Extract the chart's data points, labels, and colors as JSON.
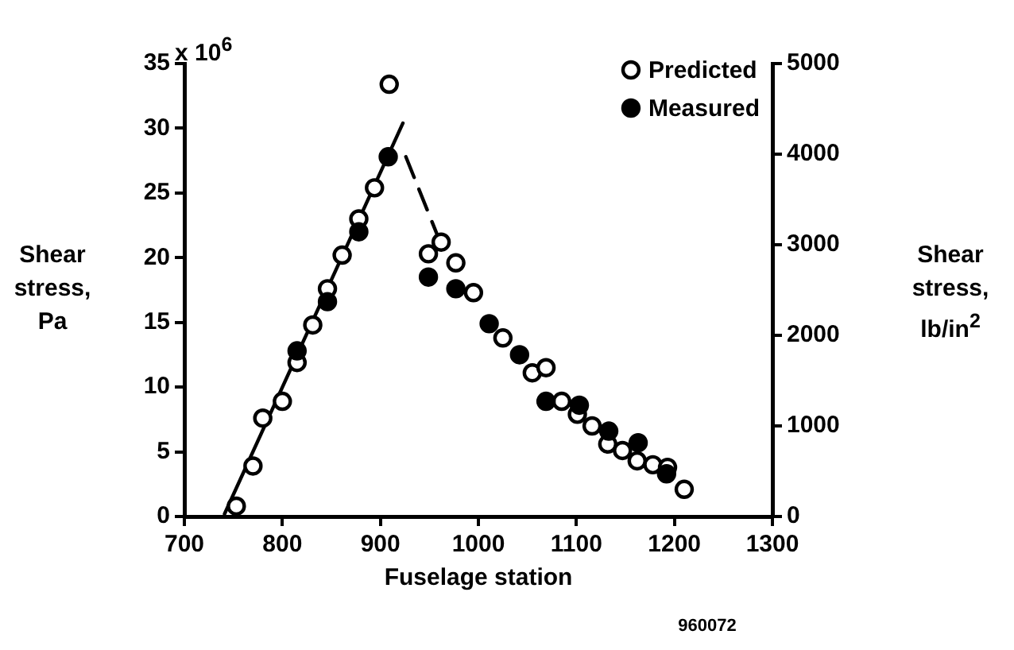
{
  "chart_data": {
    "type": "scatter",
    "xlabel": "Fuselage station",
    "ylabel": "Shear stress, Pa",
    "y2label": "Shear stress, lb/in$^{2}$",
    "annotations": [
      "x 10$^{6}$",
      "960072"
    ],
    "xlim": [
      700,
      1300
    ],
    "xticks": [
      700,
      800,
      900,
      1000,
      1100,
      1200,
      1300
    ],
    "ylim": [
      0,
      35
    ],
    "yticks": [
      0,
      5,
      10,
      15,
      20,
      25,
      30,
      35
    ],
    "y2lim": [
      0,
      5000
    ],
    "y2ticks": [
      0,
      1000,
      2000,
      3000,
      4000,
      5000
    ],
    "grid": false,
    "legend": "top right",
    "marker": "circle",
    "series": [
      {
        "name": "Predicted",
        "color": "#ffffff",
        "x": [
          753,
          770,
          780,
          800,
          815,
          831,
          846,
          861,
          878,
          894,
          909,
          949,
          962,
          977,
          995,
          1025,
          1055,
          1069,
          1085,
          1101,
          1116,
          1132,
          1147,
          1162,
          1178,
          1193,
          1210
        ],
        "values": [
          0.8,
          3.9,
          7.6,
          8.9,
          11.9,
          14.8,
          17.6,
          20.2,
          23.0,
          25.4,
          33.4,
          20.3,
          21.2,
          19.6,
          17.3,
          13.8,
          11.1,
          11.5,
          8.9,
          7.9,
          7.0,
          5.6,
          5.1,
          4.3,
          4.0,
          3.8,
          2.1
        ]
      },
      {
        "name": "Measured",
        "color": "#000000",
        "x": [
          815,
          846,
          878,
          908,
          949,
          977,
          1011,
          1042,
          1069,
          1103,
          1133,
          1163,
          1192
        ],
        "values": [
          12.8,
          16.6,
          22.0,
          27.8,
          18.5,
          17.6,
          14.9,
          12.5,
          8.9,
          8.6,
          6.6,
          5.7,
          3.3
        ]
      },
      {
        "type": "line",
        "color": "#000000",
        "line_style": "solid",
        "marker": "none",
        "x": [
          741,
          923
        ],
        "values": [
          0.2,
          30.4
        ]
      },
      {
        "type": "line",
        "color": "#000000",
        "line_style": "dashed",
        "marker": "none",
        "x": [
          926,
          961
        ],
        "values": [
          27.8,
          21.2
        ]
      }
    ]
  }
}
